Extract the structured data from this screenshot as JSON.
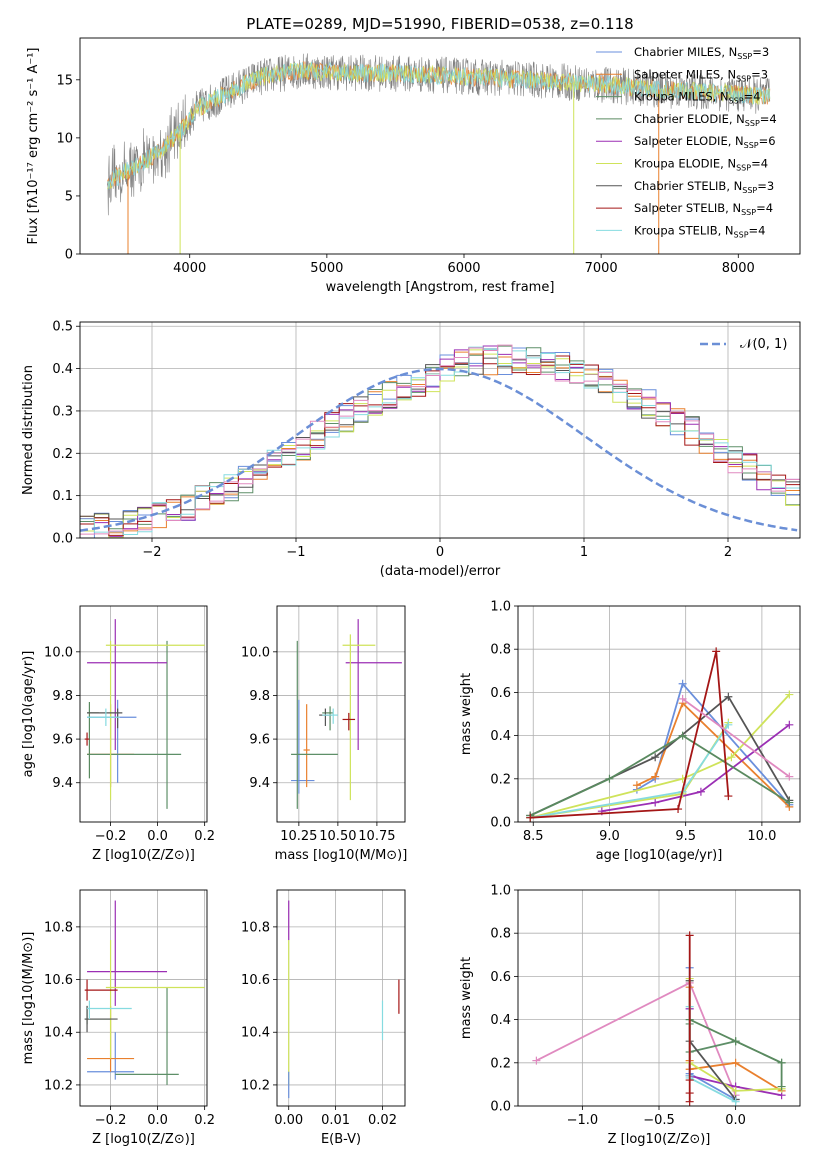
{
  "figure": {
    "title": "PLATE=0289, MJD=51990, FIBERID=0538, z=0.118"
  },
  "colors": {
    "Chabrier MILES": "#6a8fdc",
    "Salpeter MILES": "#e9802e",
    "Kroupa MILES": "#5e8f68",
    "Chabrier ELODIE": "#5a8a60",
    "Salpeter ELODIE": "#9b2fb4",
    "Kroupa ELODIE": "#cfe35a",
    "Chabrier STELIB": "#555555",
    "Salpeter STELIB": "#a41616",
    "Kroupa STELIB": "#86dbe0",
    "data": "#808080",
    "normal": "#6b8fd6",
    "pink": "#e08ac0"
  },
  "chart_data": [
    {
      "id": "spectrum",
      "type": "line",
      "xlabel": "wavelength [Angstrom, rest frame]",
      "ylabel": "Flux [fλ10⁻¹⁷ erg cm⁻² s⁻¹ A⁻¹]",
      "xlim": [
        3200,
        8450
      ],
      "ylim": [
        0,
        18.6
      ],
      "xticks": [
        4000,
        5000,
        6000,
        7000,
        8000
      ],
      "yticks": [
        0,
        5,
        10,
        15
      ],
      "continuum": {
        "x": [
          3400,
          3600,
          3800,
          3950,
          4050,
          4300,
          4500,
          4800,
          5200,
          5600,
          6000,
          6500,
          7000,
          7500,
          8000,
          8200
        ],
        "y": [
          6.2,
          7.5,
          9.0,
          10.8,
          12.5,
          14.0,
          15.2,
          15.8,
          15.6,
          15.5,
          15.3,
          15.0,
          14.6,
          14.1,
          13.8,
          13.6
        ]
      },
      "legend": [
        "Chabrier MILES, N_SSP=3",
        "Salpeter MILES, N_SSP=3",
        "Kroupa MILES, N_SSP=4",
        "Chabrier ELODIE, N_SSP=4",
        "Salpeter ELODIE, N_SSP=6",
        "Kroupa ELODIE, N_SSP=4",
        "Chabrier STELIB, N_SSP=3",
        "Salpeter STELIB, N_SSP=4",
        "Kroupa STELIB, N_SSP=4"
      ]
    },
    {
      "id": "residuals",
      "type": "histogram",
      "xlabel": "(data-model)/error",
      "ylabel": "Normed distribution",
      "xlim": [
        -2.5,
        2.5
      ],
      "ylim": [
        0,
        0.51
      ],
      "xticks": [
        -2,
        -1,
        0,
        1,
        2
      ],
      "yticks": [
        0.0,
        0.1,
        0.2,
        0.3,
        0.4,
        0.5
      ],
      "bin_width": 0.1,
      "base": [
        0.02,
        0.024,
        0.03,
        0.036,
        0.044,
        0.053,
        0.064,
        0.076,
        0.089,
        0.104,
        0.12,
        0.138,
        0.157,
        0.177,
        0.198,
        0.219,
        0.241,
        0.262,
        0.283,
        0.302,
        0.32,
        0.337,
        0.352,
        0.365,
        0.376,
        0.385,
        0.392,
        0.397,
        0.4,
        0.401,
        0.4,
        0.397,
        0.392,
        0.385,
        0.376,
        0.365,
        0.352,
        0.337,
        0.32,
        0.302,
        0.283,
        0.262,
        0.241,
        0.219,
        0.198,
        0.177,
        0.157,
        0.138,
        0.12,
        0.104
      ],
      "legend": "𝒩(0, 1)"
    },
    {
      "id": "age-vs-Z",
      "type": "errorbar",
      "xlabel": "Z [log10(Z/Z⊙)]",
      "ylabel": "age [log10(age/yr)]",
      "xlim": [
        -0.33,
        0.21
      ],
      "ylim": [
        9.22,
        10.21
      ],
      "xticks": [
        -0.2,
        0.0,
        0.2
      ],
      "yticks": [
        9.4,
        9.6,
        9.8,
        10.0
      ],
      "points": [
        {
          "model": "Chabrier MILES",
          "x": -0.17,
          "xlo": -0.3,
          "xhi": -0.09,
          "y": 9.7,
          "ylo": 9.4,
          "yhi": 9.78
        },
        {
          "model": "Salpeter MILES",
          "x": -0.2,
          "xlo": -0.3,
          "xhi": -0.1,
          "y": 9.53,
          "ylo": 9.38,
          "yhi": 9.76
        },
        {
          "model": "Kroupa MILES",
          "x": 0.04,
          "xlo": -0.3,
          "xhi": 0.1,
          "y": 9.53,
          "ylo": 9.28,
          "yhi": 10.05
        },
        {
          "model": "Chabrier ELODIE",
          "x": -0.29,
          "xlo": -0.3,
          "xhi": -0.25,
          "y": 9.72,
          "ylo": 9.42,
          "yhi": 9.77
        },
        {
          "model": "Salpeter ELODIE",
          "x": -0.18,
          "xlo": -0.3,
          "xhi": 0.04,
          "y": 9.95,
          "ylo": 9.55,
          "yhi": 10.15
        },
        {
          "model": "Kroupa ELODIE",
          "x": -0.2,
          "xlo": -0.22,
          "xhi": 0.2,
          "y": 10.03,
          "ylo": 9.32,
          "yhi": 10.05
        },
        {
          "model": "Chabrier STELIB",
          "x": -0.17,
          "xlo": -0.3,
          "xhi": -0.15,
          "y": 9.72,
          "ylo": 9.65,
          "yhi": 9.74
        },
        {
          "model": "Salpeter STELIB",
          "x": -0.3,
          "xlo": -0.31,
          "xhi": -0.29,
          "y": 9.6,
          "ylo": 9.57,
          "yhi": 9.63
        },
        {
          "model": "Kroupa STELIB",
          "x": -0.22,
          "xlo": -0.3,
          "xhi": -0.16,
          "y": 9.7,
          "ylo": 9.66,
          "yhi": 9.74
        }
      ]
    },
    {
      "id": "age-vs-mass",
      "type": "errorbar",
      "xlabel": "mass [log10(M/M⊙)]",
      "ylabel": "",
      "xlim": [
        10.11,
        10.93
      ],
      "ylim": [
        9.22,
        10.21
      ],
      "xticks": [
        10.25,
        10.5,
        10.75
      ],
      "xtick_labels": [
        "10.25",
        "10.50",
        "10.75"
      ],
      "yticks": [
        9.4,
        9.6,
        9.8,
        10.0
      ],
      "points": [
        {
          "model": "Chabrier MILES",
          "x": 10.25,
          "xlo": 10.2,
          "xhi": 10.35,
          "y": 9.41,
          "ylo": 9.35,
          "yhi": 9.78
        },
        {
          "model": "Salpeter MILES",
          "x": 10.3,
          "xlo": 10.28,
          "xhi": 10.32,
          "y": 9.55,
          "ylo": 9.38,
          "yhi": 9.76
        },
        {
          "model": "Kroupa MILES",
          "x": 10.24,
          "xlo": 10.2,
          "xhi": 10.5,
          "y": 9.53,
          "ylo": 9.28,
          "yhi": 10.05
        },
        {
          "model": "Chabrier ELODIE",
          "x": 10.45,
          "xlo": 10.4,
          "xhi": 10.47,
          "y": 9.72,
          "ylo": 9.64,
          "yhi": 9.75
        },
        {
          "model": "Salpeter ELODIE",
          "x": 10.63,
          "xlo": 10.55,
          "xhi": 10.91,
          "y": 9.95,
          "ylo": 9.55,
          "yhi": 10.15
        },
        {
          "model": "Kroupa ELODIE",
          "x": 10.58,
          "xlo": 10.53,
          "xhi": 10.74,
          "y": 10.03,
          "ylo": 9.32,
          "yhi": 10.08
        },
        {
          "model": "Chabrier STELIB",
          "x": 10.42,
          "xlo": 10.38,
          "xhi": 10.46,
          "y": 9.71,
          "ylo": 9.66,
          "yhi": 9.74
        },
        {
          "model": "Salpeter STELIB",
          "x": 10.57,
          "xlo": 10.53,
          "xhi": 10.61,
          "y": 9.69,
          "ylo": 9.64,
          "yhi": 9.72
        },
        {
          "model": "Kroupa STELIB",
          "x": 10.47,
          "xlo": 10.4,
          "xhi": 10.5,
          "y": 9.71,
          "ylo": 9.67,
          "yhi": 9.74
        }
      ]
    },
    {
      "id": "weight-vs-age",
      "type": "line",
      "xlabel": "age [log10(age/yr)]",
      "ylabel": "mass weight",
      "xlim": [
        8.4,
        10.25
      ],
      "ylim": [
        0,
        1.0
      ],
      "xticks": [
        8.5,
        9.0,
        9.5,
        10.0
      ],
      "yticks": [
        0.0,
        0.2,
        0.4,
        0.6,
        0.8,
        1.0
      ],
      "series": [
        {
          "model": "Chabrier MILES",
          "x": [
            9.18,
            9.3,
            9.48,
            10.18
          ],
          "y": [
            0.15,
            0.2,
            0.64,
            0.08
          ]
        },
        {
          "model": "Salpeter MILES",
          "x": [
            9.18,
            9.3,
            9.48,
            10.18
          ],
          "y": [
            0.17,
            0.21,
            0.55,
            0.07
          ]
        },
        {
          "model": "Salpeter ELODIE",
          "x": [
            8.95,
            9.3,
            9.6,
            10.18
          ],
          "y": [
            0.05,
            0.09,
            0.14,
            0.45
          ]
        },
        {
          "model": "Kroupa ELODIE",
          "x": [
            8.48,
            9.48,
            9.8,
            10.18
          ],
          "y": [
            0.02,
            0.2,
            0.3,
            0.59
          ]
        },
        {
          "model": "Chabrier STELIB",
          "x": [
            8.48,
            9.3,
            9.78,
            10.18
          ],
          "y": [
            0.03,
            0.3,
            0.58,
            0.1
          ]
        },
        {
          "model": "Kroupa ELODIE",
          "x": [
            8.48,
            9.48,
            9.78
          ],
          "y": [
            0.02,
            0.13,
            0.46
          ]
        },
        {
          "model": "Kroupa STELIB",
          "x": [
            8.48,
            9.48,
            9.78
          ],
          "y": [
            0.02,
            0.14,
            0.45
          ]
        },
        {
          "model": "Chabrier ELODIE",
          "x": [
            8.48,
            9.0,
            9.48,
            10.18
          ],
          "y": [
            0.03,
            0.2,
            0.4,
            0.09
          ]
        },
        {
          "model": "Salpeter STELIB",
          "x": [
            8.48,
            9.45,
            9.7,
            9.78
          ],
          "y": [
            0.02,
            0.06,
            0.79,
            0.12
          ]
        },
        {
          "model": "pink",
          "x": [
            9.48,
            10.18
          ],
          "y": [
            0.57,
            0.21
          ]
        }
      ]
    },
    {
      "id": "mass-vs-Z",
      "type": "errorbar",
      "xlabel": "Z [log10(Z/Z⊙)]",
      "ylabel": "mass [log10(M/M⊙)]",
      "xlim": [
        -0.33,
        0.21
      ],
      "ylim": [
        10.12,
        10.94
      ],
      "xticks": [
        -0.2,
        0.0,
        0.2
      ],
      "yticks": [
        10.2,
        10.4,
        10.6,
        10.8
      ],
      "points": [
        {
          "model": "Chabrier MILES",
          "x": -0.18,
          "xlo": -0.3,
          "xhi": -0.1,
          "y": 10.25,
          "ylo": 10.22,
          "yhi": 10.4
        },
        {
          "model": "Salpeter MILES",
          "x": -0.2,
          "xlo": -0.3,
          "xhi": -0.1,
          "y": 10.3,
          "ylo": 10.25,
          "yhi": 10.5
        },
        {
          "model": "Kroupa MILES",
          "x": 0.04,
          "xlo": -0.18,
          "xhi": 0.09,
          "y": 10.24,
          "ylo": 10.2,
          "yhi": 10.57
        },
        {
          "model": "Chabrier ELODIE",
          "x": -0.3,
          "xlo": -0.31,
          "xhi": -0.2,
          "y": 10.45,
          "ylo": 10.43,
          "yhi": 10.5
        },
        {
          "model": "Salpeter ELODIE",
          "x": -0.18,
          "xlo": -0.3,
          "xhi": 0.04,
          "y": 10.63,
          "ylo": 10.5,
          "yhi": 10.9
        },
        {
          "model": "Kroupa ELODIE",
          "x": -0.2,
          "xlo": -0.22,
          "xhi": 0.2,
          "y": 10.57,
          "ylo": 10.3,
          "yhi": 10.75
        },
        {
          "model": "Chabrier STELIB",
          "x": -0.3,
          "xlo": -0.31,
          "xhi": -0.17,
          "y": 10.45,
          "ylo": 10.4,
          "yhi": 10.5
        },
        {
          "model": "Salpeter STELIB",
          "x": -0.3,
          "xlo": -0.31,
          "xhi": -0.17,
          "y": 10.56,
          "ylo": 10.52,
          "yhi": 10.6
        },
        {
          "model": "Kroupa STELIB",
          "x": -0.29,
          "xlo": -0.3,
          "xhi": -0.11,
          "y": 10.49,
          "ylo": 10.45,
          "yhi": 10.52
        }
      ]
    },
    {
      "id": "mass-vs-EBV",
      "type": "errorbar",
      "xlabel": "E(B-V)",
      "ylabel": "",
      "xlim": [
        -0.0025,
        0.0248
      ],
      "ylim": [
        10.12,
        10.94
      ],
      "xticks": [
        0.0,
        0.01,
        0.02
      ],
      "xtick_labels": [
        "0.00",
        "0.01",
        "0.02"
      ],
      "yticks": [
        10.2,
        10.4,
        10.6,
        10.8
      ],
      "points": [
        {
          "model": "Kroupa ELODIE",
          "x": 0.0,
          "xlo": 0.0,
          "xhi": 0.0,
          "y": 10.57,
          "ylo": 10.2,
          "yhi": 10.75
        },
        {
          "model": "Salpeter ELODIE",
          "x": 0.0,
          "xlo": 0.0,
          "xhi": 0.0,
          "y": 10.82,
          "ylo": 10.75,
          "yhi": 10.9
        },
        {
          "model": "Chabrier MILES",
          "x": 0.0,
          "xlo": 0.0,
          "xhi": 0.0,
          "y": 10.2,
          "ylo": 10.15,
          "yhi": 10.25
        },
        {
          "model": "Kroupa STELIB",
          "x": 0.02,
          "xlo": 0.02,
          "xhi": 0.02,
          "y": 10.45,
          "ylo": 10.37,
          "yhi": 10.52
        },
        {
          "model": "Salpeter STELIB",
          "x": 0.0235,
          "xlo": 0.0235,
          "xhi": 0.0235,
          "y": 10.55,
          "ylo": 10.47,
          "yhi": 10.6
        }
      ]
    },
    {
      "id": "weight-vs-Z",
      "type": "line",
      "xlabel": "Z [log10(Z/Z⊙)]",
      "ylabel": "mass weight",
      "xlim": [
        -1.42,
        0.42
      ],
      "ylim": [
        0,
        1.0
      ],
      "xticks": [
        -1.0,
        -0.5,
        0.0
      ],
      "yticks": [
        0.0,
        0.2,
        0.4,
        0.6,
        0.8,
        1.0
      ],
      "series": [
        {
          "model": "pink",
          "x": [
            -1.3,
            -0.3,
            0.0
          ],
          "y": [
            0.21,
            0.57,
            0.05
          ]
        },
        {
          "model": "Chabrier MILES",
          "x": [
            -0.3,
            -0.3,
            -0.3,
            0.0
          ],
          "y": [
            0.64,
            0.45,
            0.15,
            0.03
          ]
        },
        {
          "model": "Salpeter MILES",
          "x": [
            -0.3,
            -0.3,
            -0.3,
            0.0,
            0.3
          ],
          "y": [
            0.55,
            0.21,
            0.17,
            0.2,
            0.07
          ]
        },
        {
          "model": "Kroupa MILES",
          "x": [
            -0.3,
            -0.3,
            0.0,
            0.3
          ],
          "y": [
            0.38,
            0.25,
            0.3,
            0.2
          ]
        },
        {
          "model": "Salpeter ELODIE",
          "x": [
            -0.3,
            -0.3,
            0.0,
            0.3
          ],
          "y": [
            0.45,
            0.14,
            0.09,
            0.05
          ]
        },
        {
          "model": "Kroupa ELODIE",
          "x": [
            -0.3,
            -0.3,
            0.0,
            0.3
          ],
          "y": [
            0.59,
            0.2,
            0.07,
            0.08
          ]
        },
        {
          "model": "Chabrier STELIB",
          "x": [
            -0.3,
            -0.3,
            0.0
          ],
          "y": [
            0.58,
            0.3,
            0.03
          ]
        },
        {
          "model": "Kroupa STELIB",
          "x": [
            -0.3,
            -0.3,
            -0.3,
            0.0
          ],
          "y": [
            0.46,
            0.14,
            0.13,
            0.02
          ]
        },
        {
          "model": "Chabrier ELODIE",
          "x": [
            -0.3,
            0.0,
            0.3,
            0.3
          ],
          "y": [
            0.4,
            0.3,
            0.2,
            0.09
          ]
        },
        {
          "model": "Salpeter STELIB",
          "x": [
            -0.3,
            -0.3,
            -0.3,
            -0.3
          ],
          "y": [
            0.79,
            0.12,
            0.06,
            0.02
          ]
        }
      ]
    }
  ]
}
